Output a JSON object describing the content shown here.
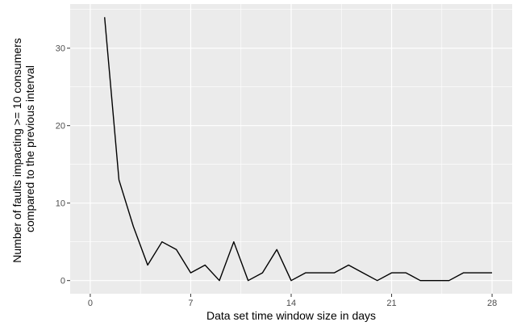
{
  "chart_data": {
    "type": "line",
    "title": "",
    "xlabel": "Data set time window size in days",
    "ylabel_line1": "Number of faults impacting >= 10 consumers",
    "ylabel_line2": "compared to the previous interval",
    "xlim": [
      -1.4,
      29.4
    ],
    "ylim": [
      -1.7,
      35.7
    ],
    "x_ticks": [
      0,
      7,
      14,
      21,
      28
    ],
    "y_ticks": [
      0,
      10,
      20,
      30
    ],
    "grid": true,
    "background_color": "#ebebeb",
    "grid_color": "#ffffff",
    "line_color": "#000000",
    "series": [
      {
        "x": [
          1,
          2,
          3,
          4,
          5,
          6,
          7,
          8,
          9,
          10,
          11,
          12,
          13,
          14,
          15,
          16,
          17,
          18,
          19,
          20,
          21,
          22,
          23,
          24,
          25,
          26,
          27,
          28
        ],
        "values": [
          34,
          13,
          7,
          2,
          5,
          4,
          1,
          2,
          0,
          5,
          0,
          1,
          4,
          0,
          1,
          1,
          1,
          2,
          1,
          0,
          1,
          1,
          0,
          0,
          0,
          1,
          1,
          1
        ]
      }
    ]
  }
}
